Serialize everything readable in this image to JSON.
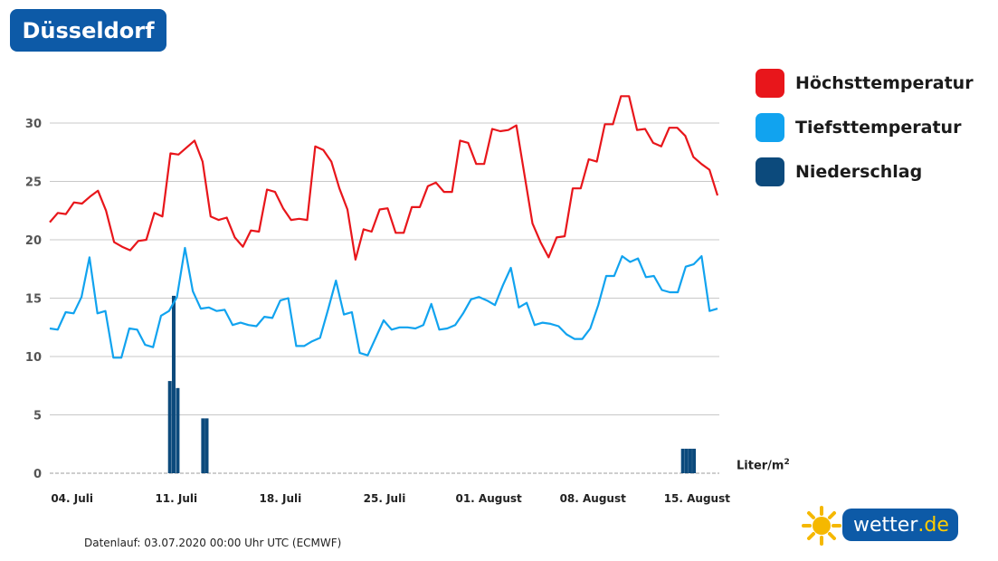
{
  "header": {
    "city": "Düsseldorf"
  },
  "legend": [
    {
      "label": "Höchsttemperatur",
      "color": "#e8161b"
    },
    {
      "label": "Tiefsttemperatur",
      "color": "#11a3ef"
    },
    {
      "label": "Niederschlag",
      "color": "#0c4a7c"
    }
  ],
  "unit": {
    "text": "Liter/m",
    "sup": "2"
  },
  "footnote": "Datenlauf: 03.07.2020 00:00 Uhr UTC (ECMWF)",
  "logo": {
    "name": "wetter",
    "tld": ".de",
    "icon": "sun-icon"
  },
  "chart_data": {
    "type": "line",
    "title": "",
    "xlabel": "",
    "ylabel": "",
    "ylim": [
      0,
      33
    ],
    "yticks": [
      0,
      5,
      10,
      15,
      20,
      25,
      30
    ],
    "grid": true,
    "legend_position": "right",
    "x_start_day_index": 0,
    "x_day_count": 45,
    "x_tick_labels": [
      {
        "label": "04. Juli",
        "day": 1
      },
      {
        "label": "11. Juli",
        "day": 8
      },
      {
        "label": "18. Juli",
        "day": 15
      },
      {
        "label": "25. Juli",
        "day": 22
      },
      {
        "label": "01. August",
        "day": 29
      },
      {
        "label": "08. August",
        "day": 36
      },
      {
        "label": "15. August",
        "day": 43
      }
    ],
    "series": [
      {
        "name": "Höchsttemperatur",
        "color": "#e8161b",
        "values": [
          21.5,
          22.3,
          22.2,
          23.2,
          23.1,
          23.7,
          24.2,
          22.5,
          19.8,
          19.4,
          19.1,
          19.9,
          20.0,
          22.3,
          22.0,
          27.4,
          27.3,
          27.9,
          28.5,
          26.7,
          22.0,
          21.7,
          21.9,
          20.2,
          19.4,
          20.8,
          20.7,
          24.3,
          24.1,
          22.7,
          21.7,
          21.8,
          21.7,
          28.0,
          27.7,
          26.7,
          24.4,
          22.6,
          18.3,
          20.9,
          20.7,
          22.6,
          22.7,
          20.6,
          20.6,
          22.8,
          22.8,
          24.6,
          24.9,
          24.1,
          24.1,
          28.5,
          28.3,
          26.5,
          26.5,
          29.5,
          29.3,
          29.4,
          29.8,
          25.6,
          21.4,
          19.8,
          18.5,
          20.2,
          20.3,
          24.4,
          24.4,
          26.9,
          26.7,
          29.9,
          29.9,
          32.3,
          32.3,
          29.4,
          29.5,
          28.3,
          28.0,
          29.6,
          29.6,
          28.9,
          27.1,
          26.5,
          26.0,
          23.8
        ]
      },
      {
        "name": "Tiefsttemperatur",
        "color": "#11a3ef",
        "values": [
          12.4,
          12.3,
          13.8,
          13.7,
          15.1,
          18.5,
          13.7,
          13.9,
          9.9,
          9.9,
          12.4,
          12.3,
          11.0,
          10.8,
          13.5,
          13.9,
          15.1,
          19.3,
          15.6,
          14.1,
          14.2,
          13.9,
          14.0,
          12.7,
          12.9,
          12.7,
          12.6,
          13.4,
          13.3,
          14.8,
          15.0,
          10.9,
          10.9,
          11.3,
          11.6,
          14.0,
          16.5,
          13.6,
          13.8,
          10.3,
          10.1,
          11.6,
          13.1,
          12.3,
          12.5,
          12.5,
          12.4,
          12.7,
          14.5,
          12.3,
          12.4,
          12.7,
          13.7,
          14.9,
          15.1,
          14.8,
          14.4,
          16.1,
          17.6,
          14.2,
          14.6,
          12.7,
          12.9,
          12.8,
          12.6,
          11.9,
          11.5,
          11.5,
          12.4,
          14.4,
          16.9,
          16.9,
          18.6,
          18.1,
          18.4,
          16.8,
          16.9,
          15.7,
          15.5,
          15.5,
          17.7,
          17.9,
          18.6,
          13.9,
          14.1
        ]
      },
      {
        "name": "Niederschlag",
        "color": "#0c4a7c",
        "bars": [
          {
            "day": 8.07,
            "value": 7.9
          },
          {
            "day": 8.33,
            "value": 15.2
          },
          {
            "day": 8.6,
            "value": 7.3
          },
          {
            "day": 10.3,
            "value": 4.7
          },
          {
            "day": 10.55,
            "value": 4.7
          },
          {
            "day": 42.55,
            "value": 2.1
          },
          {
            "day": 42.8,
            "value": 2.1
          },
          {
            "day": 43.05,
            "value": 2.1
          },
          {
            "day": 43.3,
            "value": 2.1
          }
        ]
      }
    ]
  }
}
